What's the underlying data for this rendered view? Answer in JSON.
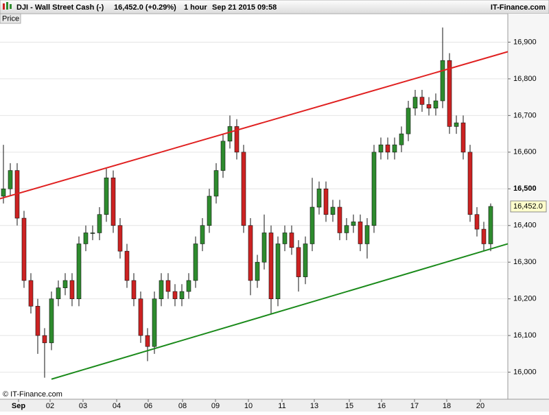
{
  "header": {
    "instrument": "DJI - Wall Street Cash (-)",
    "quote": "16,452.0 (+0.29%)",
    "interval": "1 hour",
    "datetime": "Sep 21 2015 09:58",
    "brand": "IT-Finance.com"
  },
  "chart_data": {
    "type": "candlestick",
    "panel_label": "Price",
    "copyright": "© IT-Finance.com",
    "x": [
      0,
      1,
      2,
      3,
      4,
      5,
      6,
      7,
      8,
      9,
      10,
      11,
      12,
      13,
      14,
      15,
      16,
      17,
      18,
      19,
      20,
      21,
      22,
      23,
      24,
      25,
      26,
      27,
      28,
      29,
      30,
      31,
      32,
      33,
      34,
      35,
      36,
      37,
      38,
      39,
      40,
      41,
      42,
      43,
      44,
      45,
      46,
      47,
      48,
      49,
      50,
      51,
      52,
      53,
      54,
      55,
      56,
      57,
      58,
      59,
      60,
      61,
      62,
      63,
      64,
      65,
      66,
      67,
      68,
      69,
      70,
      71
    ],
    "open": [
      16480,
      16500,
      16550,
      16420,
      16250,
      16180,
      16100,
      16080,
      16200,
      16230,
      16250,
      16200,
      16350,
      16380,
      16380,
      16430,
      16530,
      16400,
      16330,
      16250,
      16200,
      16100,
      16070,
      16200,
      16250,
      16220,
      16200,
      16220,
      16250,
      16350,
      16400,
      16480,
      16550,
      16630,
      16670,
      16600,
      16400,
      16250,
      16300,
      16380,
      16200,
      16350,
      16380,
      16340,
      16260,
      16350,
      16450,
      16500,
      16430,
      16450,
      16380,
      16400,
      16410,
      16350,
      16400,
      16600,
      16620,
      16600,
      16620,
      16650,
      16720,
      16750,
      16730,
      16720,
      16740,
      16850,
      16670,
      16680,
      16600,
      16430,
      16390,
      16350
    ],
    "high": [
      16620,
      16570,
      16570,
      16440,
      16270,
      16200,
      16120,
      16220,
      16250,
      16270,
      16270,
      16370,
      16400,
      16400,
      16450,
      16555,
      16550,
      16420,
      16350,
      16270,
      16220,
      16120,
      16220,
      16270,
      16270,
      16240,
      16240,
      16270,
      16370,
      16420,
      16500,
      16570,
      16650,
      16700,
      16690,
      16620,
      16420,
      16320,
      16430,
      16400,
      16370,
      16400,
      16400,
      16360,
      16370,
      16530,
      16520,
      16520,
      16470,
      16470,
      16420,
      16430,
      16430,
      16420,
      16620,
      16640,
      16640,
      16640,
      16670,
      16740,
      16770,
      16770,
      16750,
      16760,
      16940,
      16870,
      16700,
      16700,
      16620,
      16450,
      16410,
      16460
    ],
    "low": [
      16460,
      16480,
      16400,
      16230,
      16160,
      16050,
      15985,
      16060,
      16180,
      16210,
      16180,
      16180,
      16330,
      16360,
      16360,
      16410,
      16380,
      16310,
      16230,
      16180,
      16080,
      16030,
      16050,
      16180,
      16200,
      16180,
      16180,
      16200,
      16230,
      16330,
      16380,
      16460,
      16530,
      16610,
      16580,
      16380,
      16210,
      16230,
      16280,
      16160,
      16180,
      16330,
      16320,
      16220,
      16240,
      16330,
      16430,
      16410,
      16410,
      16360,
      16360,
      16380,
      16330,
      16310,
      16380,
      16580,
      16580,
      16580,
      16600,
      16630,
      16700,
      16710,
      16700,
      16700,
      16720,
      16650,
      16650,
      16580,
      16410,
      16370,
      16330,
      16330
    ],
    "close": [
      16500,
      16550,
      16420,
      16250,
      16180,
      16100,
      16080,
      16200,
      16230,
      16250,
      16200,
      16350,
      16380,
      16380,
      16430,
      16530,
      16400,
      16330,
      16250,
      16200,
      16100,
      16070,
      16200,
      16250,
      16220,
      16200,
      16220,
      16250,
      16350,
      16400,
      16480,
      16550,
      16630,
      16670,
      16600,
      16400,
      16250,
      16300,
      16380,
      16200,
      16350,
      16380,
      16340,
      16260,
      16350,
      16450,
      16500,
      16430,
      16450,
      16380,
      16400,
      16410,
      16350,
      16400,
      16600,
      16620,
      16600,
      16620,
      16650,
      16720,
      16750,
      16730,
      16720,
      16740,
      16850,
      16670,
      16680,
      16600,
      16430,
      16390,
      16350,
      16452
    ],
    "last_label": "16,452.0",
    "up_color": "#2e8b2e",
    "down_color": "#cc2222",
    "xlim": [
      -0.5,
      73.5
    ],
    "xticks": [
      {
        "value": 2.2,
        "label": "Sep"
      },
      {
        "value": 6.8,
        "label": "02"
      },
      {
        "value": 11.6,
        "label": "03"
      },
      {
        "value": 16.5,
        "label": "04"
      },
      {
        "value": 21.1,
        "label": "06"
      },
      {
        "value": 26.1,
        "label": "08"
      },
      {
        "value": 30.9,
        "label": "09"
      },
      {
        "value": 35.7,
        "label": "10"
      },
      {
        "value": 40.6,
        "label": "11"
      },
      {
        "value": 45.3,
        "label": "13"
      },
      {
        "value": 50.4,
        "label": "15"
      },
      {
        "value": 55.1,
        "label": "16"
      },
      {
        "value": 59.9,
        "label": "17"
      },
      {
        "value": 64.6,
        "label": "18"
      },
      {
        "value": 69.5,
        "label": "20"
      }
    ],
    "ylim": [
      15930,
      17000
    ],
    "yticks": [
      {
        "value": 16000,
        "label": "16,000"
      },
      {
        "value": 16100,
        "label": "16,100"
      },
      {
        "value": 16200,
        "label": "16,200"
      },
      {
        "value": 16300,
        "label": "16,300"
      },
      {
        "value": 16400,
        "label": "16,400"
      },
      {
        "value": 16500,
        "label": "16,500"
      },
      {
        "value": 16600,
        "label": "16,600"
      },
      {
        "value": 16700,
        "label": "16,700"
      },
      {
        "value": 16800,
        "label": "16,800"
      },
      {
        "value": 16900,
        "label": "16,900"
      }
    ],
    "grid": true,
    "trendlines": [
      {
        "color": "#e02020",
        "x": [
          -0.5,
          73.5
        ],
        "y": [
          16473,
          16874
        ]
      },
      {
        "color": "#1a8a1a",
        "x": [
          7.0,
          73.5
        ],
        "y": [
          15981,
          16350
        ]
      }
    ]
  }
}
